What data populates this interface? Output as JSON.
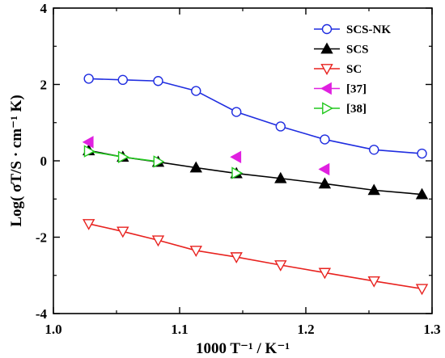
{
  "chart_data": {
    "type": "line",
    "title": "",
    "xlabel": "1000 T⁻¹ / K⁻¹",
    "ylabel": "Log( σT/S · cm⁻¹ K)",
    "xlim": [
      1.0,
      1.3
    ],
    "ylim": [
      -4,
      4
    ],
    "xticks": [
      "1.0",
      "1.1",
      "1.2",
      "1.3"
    ],
    "yticks": [
      "-4",
      "-2",
      "0",
      "2",
      "4"
    ],
    "grid": false,
    "legend_position": "top-right",
    "series": [
      {
        "name": "SCS-NK",
        "color": "#1f2de0",
        "marker": "circle-open",
        "line": true,
        "x": [
          1.028,
          1.055,
          1.083,
          1.113,
          1.145,
          1.18,
          1.215,
          1.254,
          1.292
        ],
        "y": [
          2.15,
          2.12,
          2.09,
          1.83,
          1.28,
          0.9,
          0.56,
          0.29,
          0.19
        ]
      },
      {
        "name": "SCS",
        "color": "#000000",
        "marker": "triangle-up-filled",
        "line": true,
        "x": [
          1.028,
          1.055,
          1.083,
          1.113,
          1.145,
          1.18,
          1.215,
          1.254,
          1.292
        ],
        "y": [
          0.27,
          0.1,
          -0.03,
          -0.18,
          -0.33,
          -0.46,
          -0.6,
          -0.77,
          -0.88
        ]
      },
      {
        "name": "SC",
        "color": "#e8221f",
        "marker": "triangle-down-open",
        "line": true,
        "x": [
          1.028,
          1.055,
          1.083,
          1.113,
          1.145,
          1.18,
          1.215,
          1.254,
          1.292
        ],
        "y": [
          -1.65,
          -1.85,
          -2.08,
          -2.35,
          -2.52,
          -2.73,
          -2.93,
          -3.15,
          -3.35
        ]
      },
      {
        "name": "[37]",
        "color": "#e020e0",
        "marker": "triangle-left-filled",
        "line": false,
        "x": [
          1.028,
          1.145,
          1.215
        ],
        "y": [
          0.49,
          0.1,
          -0.22
        ]
      },
      {
        "name": "[38]",
        "color": "#22c81e",
        "marker": "triangle-right-open",
        "line": true,
        "x": [
          1.028,
          1.055,
          1.083
        ],
        "y": [
          0.25,
          0.1,
          -0.02
        ],
        "extra_points": {
          "x": [
            1.145
          ],
          "y": [
            -0.32
          ]
        }
      }
    ]
  }
}
